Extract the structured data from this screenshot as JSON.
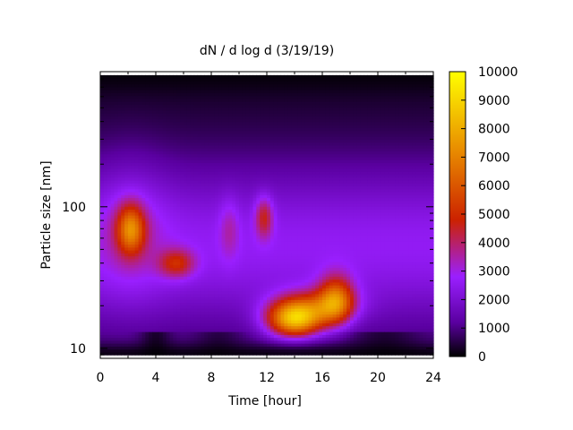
{
  "chart_data": {
    "type": "heatmap",
    "title": "dN / d log d (3/19/19)",
    "xlabel": "Time [hour]",
    "ylabel": "Particle size [nm]",
    "xlim": [
      0,
      24
    ],
    "ylim": [
      8.5,
      900
    ],
    "y_scale": "log",
    "x_ticks": [
      0,
      4,
      8,
      12,
      16,
      20,
      24
    ],
    "y_ticks": [
      10,
      100
    ],
    "colorbar": {
      "range": [
        0,
        10000
      ],
      "ticks": [
        0,
        1000,
        2000,
        3000,
        4000,
        5000,
        6000,
        7000,
        8000,
        9000,
        10000
      ],
      "palette": [
        "#000000",
        "#5a00a0",
        "#9a1fff",
        "#cc2200",
        "#e88a00",
        "#ffff00"
      ]
    },
    "data_extent": {
      "x": [
        0,
        24
      ],
      "y": [
        9,
        850
      ]
    },
    "features": [
      {
        "time": 2.2,
        "size_nm": 70,
        "value": 6400
      },
      {
        "time": 5.5,
        "size_nm": 40,
        "value": 4800
      },
      {
        "time": 11.8,
        "size_nm": 85,
        "value": 4600
      },
      {
        "time": 14.0,
        "size_nm": 16,
        "value": 8800
      },
      {
        "time": 17.0,
        "size_nm": 22,
        "value": 6500
      }
    ]
  }
}
